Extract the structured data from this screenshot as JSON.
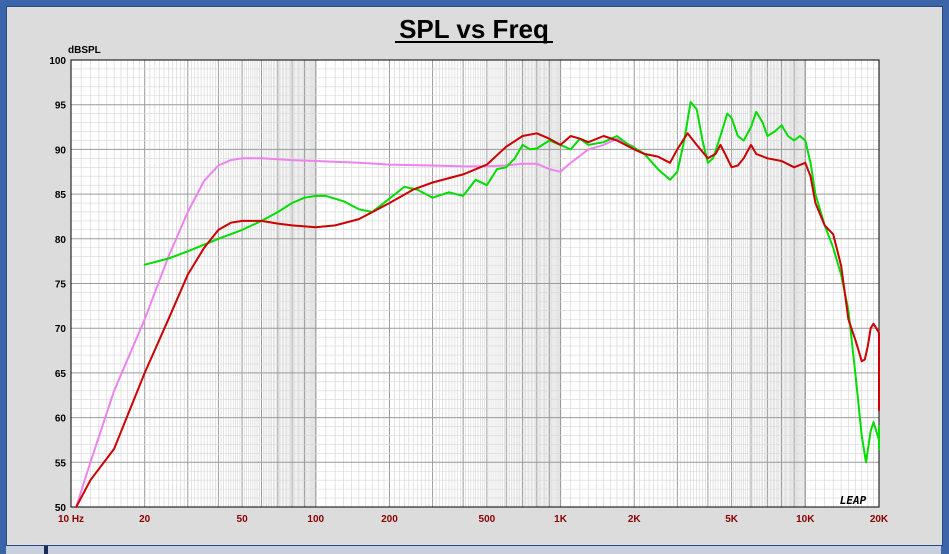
{
  "chart_data": {
    "type": "line",
    "title": "SPL vs Freq",
    "ylabel": "dBSPL",
    "xscale": "log",
    "xlim": [
      10,
      20000
    ],
    "ylim": [
      50,
      100
    ],
    "grid": true,
    "y_ticks": [
      100,
      95,
      90,
      85,
      80,
      75,
      70,
      65,
      60,
      55,
      50
    ],
    "x_ticks": [
      {
        "value": 10,
        "label": "10 Hz"
      },
      {
        "value": 20,
        "label": "20"
      },
      {
        "value": 50,
        "label": "50"
      },
      {
        "value": 100,
        "label": "100"
      },
      {
        "value": 200,
        "label": "200"
      },
      {
        "value": 500,
        "label": "500"
      },
      {
        "value": 1000,
        "label": "1K"
      },
      {
        "value": 2000,
        "label": "2K"
      },
      {
        "value": 5000,
        "label": "5K"
      },
      {
        "value": 10000,
        "label": "10K"
      },
      {
        "value": 20000,
        "label": "20K"
      }
    ],
    "series": [
      {
        "color": "#ee82ee",
        "points": [
          [
            10.5,
            50
          ],
          [
            12,
            55
          ],
          [
            15,
            63
          ],
          [
            20,
            71
          ],
          [
            25,
            78
          ],
          [
            30,
            83
          ],
          [
            35,
            86.5
          ],
          [
            40,
            88.2
          ],
          [
            45,
            88.8
          ],
          [
            50,
            89
          ],
          [
            60,
            89
          ],
          [
            80,
            88.8
          ],
          [
            100,
            88.7
          ],
          [
            150,
            88.5
          ],
          [
            200,
            88.3
          ],
          [
            300,
            88.2
          ],
          [
            400,
            88.1
          ],
          [
            500,
            88.1
          ],
          [
            600,
            88.2
          ],
          [
            700,
            88.4
          ],
          [
            800,
            88.4
          ],
          [
            900,
            87.8
          ],
          [
            1000,
            87.5
          ],
          [
            1100,
            88.5
          ],
          [
            1300,
            90
          ],
          [
            1500,
            90.5
          ],
          [
            1700,
            91.2
          ],
          [
            1800,
            90.8
          ],
          [
            2000,
            90.3
          ]
        ]
      },
      {
        "color": "#00dd00",
        "points": [
          [
            20,
            77.1
          ],
          [
            25,
            77.8
          ],
          [
            30,
            78.6
          ],
          [
            40,
            80
          ],
          [
            50,
            81
          ],
          [
            60,
            82
          ],
          [
            70,
            83
          ],
          [
            80,
            84
          ],
          [
            90,
            84.6
          ],
          [
            100,
            84.8
          ],
          [
            110,
            84.8
          ],
          [
            130,
            84.2
          ],
          [
            150,
            83.3
          ],
          [
            170,
            83
          ],
          [
            200,
            84.5
          ],
          [
            230,
            85.8
          ],
          [
            260,
            85.5
          ],
          [
            300,
            84.6
          ],
          [
            350,
            85.2
          ],
          [
            400,
            84.8
          ],
          [
            450,
            86.6
          ],
          [
            500,
            86
          ],
          [
            550,
            87.8
          ],
          [
            600,
            88
          ],
          [
            650,
            89
          ],
          [
            700,
            90.5
          ],
          [
            750,
            90
          ],
          [
            800,
            90.1
          ],
          [
            900,
            91
          ],
          [
            1000,
            90.5
          ],
          [
            1100,
            90
          ],
          [
            1200,
            91.2
          ],
          [
            1300,
            90.5
          ],
          [
            1500,
            90.8
          ],
          [
            1700,
            91.5
          ],
          [
            1900,
            90.5
          ],
          [
            2000,
            90.2
          ],
          [
            2200,
            89.5
          ],
          [
            2500,
            87.8
          ],
          [
            2800,
            86.6
          ],
          [
            3000,
            87.5
          ],
          [
            3200,
            91
          ],
          [
            3400,
            95.3
          ],
          [
            3600,
            94.5
          ],
          [
            3800,
            91
          ],
          [
            4000,
            88.5
          ],
          [
            4200,
            89
          ],
          [
            4500,
            91.5
          ],
          [
            4800,
            94
          ],
          [
            5000,
            93.5
          ],
          [
            5300,
            91.5
          ],
          [
            5600,
            91
          ],
          [
            6000,
            92.5
          ],
          [
            6300,
            94.2
          ],
          [
            6700,
            93
          ],
          [
            7000,
            91.5
          ],
          [
            7500,
            92
          ],
          [
            8000,
            92.7
          ],
          [
            8500,
            91.5
          ],
          [
            9000,
            91
          ],
          [
            9500,
            91.5
          ],
          [
            10000,
            91
          ],
          [
            10500,
            88.5
          ],
          [
            11000,
            85
          ],
          [
            12000,
            81.5
          ],
          [
            13000,
            79
          ],
          [
            14000,
            76
          ],
          [
            15000,
            72
          ],
          [
            16000,
            65
          ],
          [
            17000,
            58
          ],
          [
            17700,
            55
          ],
          [
            18500,
            58.5
          ],
          [
            19000,
            59.5
          ],
          [
            20000,
            57.5
          ],
          [
            20500,
            56.5
          ],
          [
            21000,
            57.5
          ],
          [
            21500,
            59
          ]
        ]
      },
      {
        "color": "#cc0000",
        "points": [
          [
            10.5,
            50
          ],
          [
            12,
            53
          ],
          [
            15,
            56.5
          ],
          [
            20,
            65
          ],
          [
            25,
            71
          ],
          [
            30,
            76
          ],
          [
            35,
            79
          ],
          [
            40,
            81
          ],
          [
            45,
            81.8
          ],
          [
            50,
            82
          ],
          [
            60,
            82
          ],
          [
            70,
            81.7
          ],
          [
            80,
            81.5
          ],
          [
            100,
            81.3
          ],
          [
            120,
            81.5
          ],
          [
            150,
            82.2
          ],
          [
            200,
            84
          ],
          [
            250,
            85.5
          ],
          [
            300,
            86.3
          ],
          [
            400,
            87.2
          ],
          [
            500,
            88.3
          ],
          [
            600,
            90.3
          ],
          [
            700,
            91.5
          ],
          [
            800,
            91.8
          ],
          [
            900,
            91.2
          ],
          [
            1000,
            90.5
          ],
          [
            1100,
            91.5
          ],
          [
            1200,
            91.2
          ],
          [
            1300,
            90.8
          ],
          [
            1500,
            91.5
          ],
          [
            1700,
            91
          ],
          [
            2000,
            90
          ],
          [
            2200,
            89.5
          ],
          [
            2500,
            89.2
          ],
          [
            2800,
            88.5
          ],
          [
            3000,
            90
          ],
          [
            3300,
            91.8
          ],
          [
            3600,
            90.5
          ],
          [
            4000,
            89
          ],
          [
            4300,
            89.5
          ],
          [
            4500,
            90.5
          ],
          [
            4700,
            89.5
          ],
          [
            5000,
            88
          ],
          [
            5300,
            88.2
          ],
          [
            5600,
            89
          ],
          [
            6000,
            90.5
          ],
          [
            6300,
            89.5
          ],
          [
            7000,
            89
          ],
          [
            8000,
            88.7
          ],
          [
            9000,
            88
          ],
          [
            10000,
            88.5
          ],
          [
            10500,
            87
          ],
          [
            11000,
            84
          ],
          [
            12000,
            81.5
          ],
          [
            13000,
            80.5
          ],
          [
            14000,
            77
          ],
          [
            15000,
            71
          ],
          [
            16000,
            68.7
          ],
          [
            16500,
            67.5
          ],
          [
            17000,
            66.3
          ],
          [
            17500,
            66.5
          ],
          [
            18000,
            68
          ],
          [
            18500,
            70
          ],
          [
            19000,
            70.5
          ],
          [
            20000,
            69.5
          ],
          [
            21000,
            66
          ],
          [
            22000,
            62
          ],
          [
            23000,
            60.8
          ]
        ]
      }
    ]
  },
  "watermark": "LEAP"
}
